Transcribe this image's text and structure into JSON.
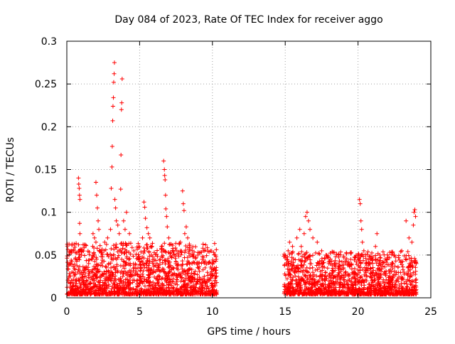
{
  "chart_data": {
    "type": "scatter",
    "title": "Day 084 of 2023, Rate Of TEC Index for receiver aggo",
    "xlabel": "GPS time / hours",
    "ylabel": "ROTI / TECUs",
    "xlim": [
      0,
      25
    ],
    "ylim": [
      0,
      0.3
    ],
    "xticks": [
      "0",
      "5",
      "10",
      "15",
      "20",
      "25"
    ],
    "yticks": [
      "0",
      "0.05",
      "0.1",
      "0.15",
      "0.2",
      "0.25",
      "0.3"
    ],
    "grid": true,
    "legend": "none",
    "marker": "plus",
    "colors": {
      "points": "#ff0000",
      "grid": "#a0a0a0",
      "axes": "#000000"
    },
    "segments": [
      {
        "x_start": 0.0,
        "x_end": 10.3,
        "typical_max": 0.06
      },
      {
        "x_start": 14.9,
        "x_end": 24.0,
        "typical_max": 0.05
      }
    ],
    "points": [
      [
        0.1,
        0.006
      ],
      [
        0.15,
        0.025
      ],
      [
        0.2,
        0.04
      ],
      [
        0.25,
        0.054
      ],
      [
        0.3,
        0.055
      ],
      [
        0.35,
        0.03
      ],
      [
        0.4,
        0.018
      ],
      [
        0.8,
        0.14
      ],
      [
        0.82,
        0.133
      ],
      [
        0.85,
        0.128
      ],
      [
        0.87,
        0.12
      ],
      [
        0.9,
        0.115
      ],
      [
        0.88,
        0.087
      ],
      [
        0.9,
        0.075
      ],
      [
        1.0,
        0.05
      ],
      [
        1.2,
        0.062
      ],
      [
        1.5,
        0.04
      ],
      [
        1.7,
        0.045
      ],
      [
        1.8,
        0.075
      ],
      [
        1.9,
        0.07
      ],
      [
        2.0,
        0.065
      ],
      [
        2.0,
        0.135
      ],
      [
        2.05,
        0.12
      ],
      [
        2.1,
        0.105
      ],
      [
        2.15,
        0.09
      ],
      [
        2.2,
        0.08
      ],
      [
        2.4,
        0.055
      ],
      [
        2.6,
        0.065
      ],
      [
        2.8,
        0.07
      ],
      [
        3.0,
        0.08
      ],
      [
        3.05,
        0.128
      ],
      [
        3.1,
        0.153
      ],
      [
        3.12,
        0.177
      ],
      [
        3.15,
        0.207
      ],
      [
        3.17,
        0.224
      ],
      [
        3.2,
        0.234
      ],
      [
        3.22,
        0.252
      ],
      [
        3.25,
        0.262
      ],
      [
        3.27,
        0.275
      ],
      [
        3.3,
        0.115
      ],
      [
        3.35,
        0.105
      ],
      [
        3.4,
        0.09
      ],
      [
        3.5,
        0.085
      ],
      [
        3.6,
        0.075
      ],
      [
        3.7,
        0.127
      ],
      [
        3.72,
        0.167
      ],
      [
        3.75,
        0.22
      ],
      [
        3.77,
        0.228
      ],
      [
        3.8,
        0.256
      ],
      [
        3.9,
        0.09
      ],
      [
        4.0,
        0.08
      ],
      [
        4.1,
        0.1
      ],
      [
        4.3,
        0.075
      ],
      [
        4.6,
        0.055
      ],
      [
        5.0,
        0.06
      ],
      [
        5.2,
        0.07
      ],
      [
        5.3,
        0.112
      ],
      [
        5.35,
        0.106
      ],
      [
        5.4,
        0.093
      ],
      [
        5.5,
        0.082
      ],
      [
        5.6,
        0.075
      ],
      [
        5.7,
        0.07
      ],
      [
        5.75,
        0.06
      ],
      [
        5.8,
        0.05
      ],
      [
        6.0,
        0.045
      ],
      [
        6.2,
        0.04
      ],
      [
        6.5,
        0.06
      ],
      [
        6.65,
        0.16
      ],
      [
        6.7,
        0.15
      ],
      [
        6.72,
        0.143
      ],
      [
        6.75,
        0.138
      ],
      [
        6.78,
        0.12
      ],
      [
        6.8,
        0.104
      ],
      [
        6.85,
        0.095
      ],
      [
        6.9,
        0.083
      ],
      [
        7.0,
        0.07
      ],
      [
        7.3,
        0.055
      ],
      [
        7.5,
        0.05
      ],
      [
        7.8,
        0.065
      ],
      [
        7.95,
        0.125
      ],
      [
        8.0,
        0.11
      ],
      [
        8.05,
        0.102
      ],
      [
        8.1,
        0.075
      ],
      [
        8.2,
        0.083
      ],
      [
        8.3,
        0.07
      ],
      [
        8.6,
        0.04
      ],
      [
        9.0,
        0.05
      ],
      [
        9.3,
        0.045
      ],
      [
        9.5,
        0.035
      ],
      [
        10.0,
        0.04
      ],
      [
        10.2,
        0.05
      ],
      [
        10.25,
        0.048
      ],
      [
        15.1,
        0.045
      ],
      [
        15.2,
        0.055
      ],
      [
        15.3,
        0.065
      ],
      [
        15.5,
        0.06
      ],
      [
        15.8,
        0.07
      ],
      [
        16.0,
        0.08
      ],
      [
        16.1,
        0.06
      ],
      [
        16.3,
        0.075
      ],
      [
        16.4,
        0.095
      ],
      [
        16.5,
        0.1
      ],
      [
        16.6,
        0.09
      ],
      [
        16.7,
        0.08
      ],
      [
        16.9,
        0.07
      ],
      [
        17.2,
        0.065
      ],
      [
        17.5,
        0.055
      ],
      [
        17.8,
        0.05
      ],
      [
        18.0,
        0.04
      ],
      [
        18.5,
        0.04
      ],
      [
        19.0,
        0.035
      ],
      [
        19.5,
        0.045
      ],
      [
        20.0,
        0.05
      ],
      [
        20.1,
        0.115
      ],
      [
        20.15,
        0.11
      ],
      [
        20.2,
        0.09
      ],
      [
        20.25,
        0.08
      ],
      [
        20.3,
        0.065
      ],
      [
        20.4,
        0.055
      ],
      [
        20.6,
        0.035
      ],
      [
        21.0,
        0.045
      ],
      [
        21.2,
        0.06
      ],
      [
        21.3,
        0.075
      ],
      [
        21.5,
        0.05
      ],
      [
        22.0,
        0.045
      ],
      [
        22.5,
        0.05
      ],
      [
        23.0,
        0.055
      ],
      [
        23.3,
        0.09
      ],
      [
        23.5,
        0.07
      ],
      [
        23.7,
        0.065
      ],
      [
        23.8,
        0.085
      ],
      [
        23.85,
        0.1
      ],
      [
        23.9,
        0.103
      ],
      [
        23.95,
        0.095
      ],
      [
        24.0,
        0.04
      ]
    ]
  }
}
